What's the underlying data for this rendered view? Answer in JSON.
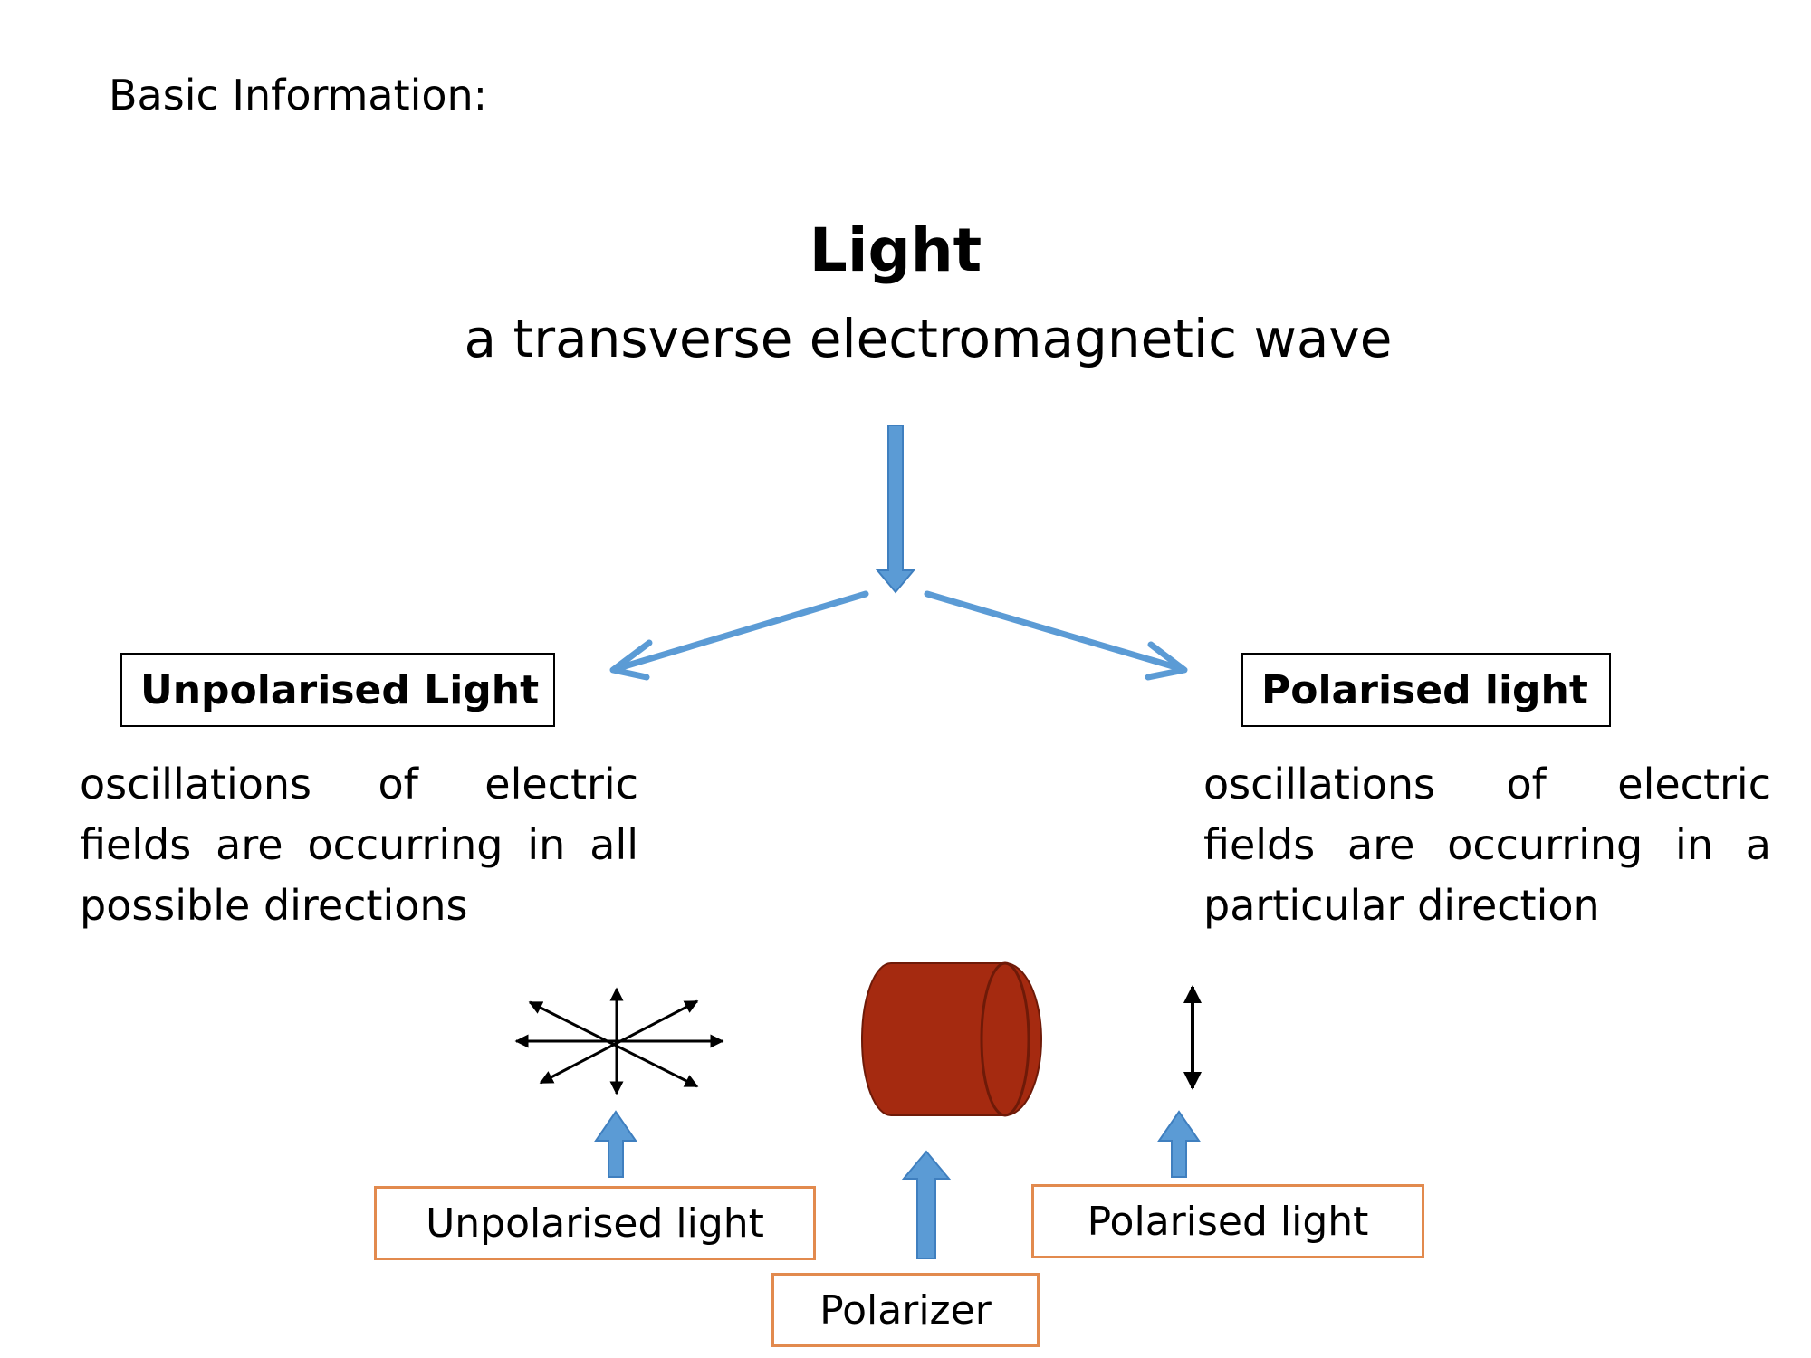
{
  "heading": "Basic Information:",
  "title": "Light",
  "subtitle": "a transverse electromagnetic wave",
  "branches": {
    "unpolarised": {
      "label": "Unpolarised Light",
      "description": "oscillations of electric fields are occurring in all possible directions"
    },
    "polarised": {
      "label": "Polarised light",
      "description": "oscillations of electric fields are occurring in a particular direction"
    }
  },
  "figure": {
    "unpolarised_label": "Unpolarised light",
    "polarizer_label": "Polarizer",
    "polarised_label": "Polarised light"
  },
  "colors": {
    "arrow_blue": "#5b9bd5",
    "arrow_blue_dark": "#3f7fbf",
    "label_border_orange": "#e28a4e",
    "polarizer_red": "#a52a10",
    "polarizer_dark": "#6e1a08"
  }
}
